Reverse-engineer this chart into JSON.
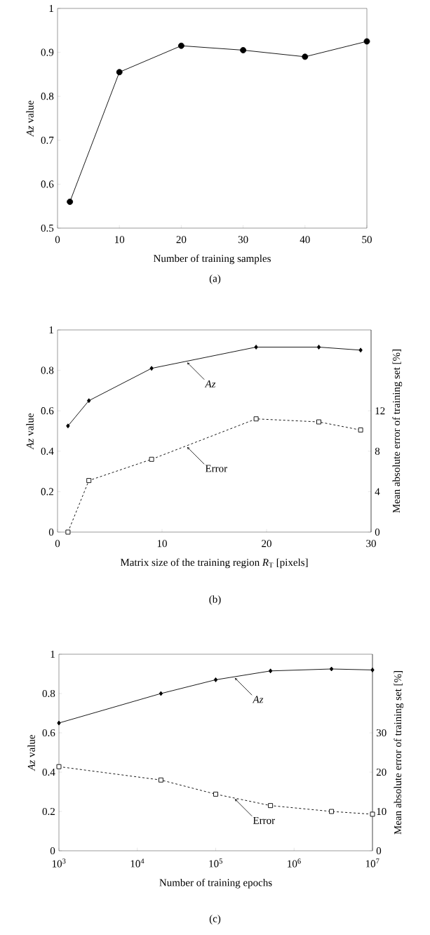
{
  "chart_data": [
    {
      "type": "line",
      "xlabel": "Number of training samples",
      "ylabel": "*Az* value",
      "x": [
        2,
        10,
        20,
        30,
        40,
        50
      ],
      "series": [
        {
          "color": "#000000",
          "marker": "circle",
          "values": [
            0.56,
            0.855,
            0.915,
            0.905,
            0.89,
            0.925
          ]
        }
      ],
      "xlim": [
        0,
        50
      ],
      "xticks": [
        0,
        10,
        20,
        30,
        40,
        50
      ],
      "ylim": [
        0.5,
        1
      ],
      "yticks": [
        0.5,
        0.6,
        0.7,
        0.8,
        0.9,
        1
      ],
      "annotations": [
        "(a)"
      ]
    },
    {
      "type": "line",
      "xlabel": "Matrix size of the training region *R*$_{T}$ [pixels]",
      "ylabel": "*Az* value",
      "y2label": "Mean absolute error of training set [%]",
      "x": [
        1,
        3,
        9,
        19,
        25,
        29
      ],
      "series": [
        {
          "color": "#000000",
          "marker": "diamond",
          "line_style": "solid",
          "values": [
            0.525,
            0.65,
            0.81,
            0.915,
            0.915,
            0.9
          ]
        },
        {
          "color": "#000000",
          "marker": "square",
          "line_style": "dashed",
          "axis": "y2",
          "values": [
            0,
            5.1,
            7.2,
            11.2,
            10.9,
            10.1
          ]
        }
      ],
      "xlim": [
        0,
        30
      ],
      "xticks": [
        0,
        10,
        20,
        30
      ],
      "ylim": [
        0,
        1
      ],
      "yticks": [
        0,
        0.2,
        0.4,
        0.6,
        0.8,
        1
      ],
      "y2lim": [
        0,
        20
      ],
      "y2ticks": [
        0,
        4,
        8,
        12
      ],
      "annotations": [
        "(b)",
        "Az",
        "Error"
      ]
    },
    {
      "type": "line",
      "xlabel": "Number of training epochs",
      "ylabel": "*Az* value",
      "y2label": "Mean absolute error of training set [%]",
      "log": "x",
      "x": [
        1000,
        20000,
        100000,
        500000,
        3000000,
        10000000
      ],
      "series": [
        {
          "color": "#000000",
          "marker": "diamond",
          "line_style": "solid",
          "values": [
            0.65,
            0.8,
            0.87,
            0.915,
            0.925,
            0.92
          ]
        },
        {
          "color": "#000000",
          "marker": "square",
          "line_style": "dashed",
          "axis": "y2",
          "values": [
            21.4,
            18.0,
            14.4,
            11.5,
            10.0,
            9.3
          ]
        }
      ],
      "xlim": [
        1000,
        10000000
      ],
      "xticks": [
        {
          "value": 1000,
          "label": "10$^{3}$"
        },
        {
          "value": 10000,
          "label": "10$^{4}$"
        },
        {
          "value": 100000,
          "label": "10$^{5}$"
        },
        {
          "value": 1000000,
          "label": "10$^{6}$"
        },
        {
          "value": 10000000,
          "label": "10$^{7}$"
        }
      ],
      "ylim": [
        0,
        1
      ],
      "yticks": [
        0,
        0.2,
        0.4,
        0.6,
        0.8,
        1
      ],
      "y2lim": [
        0,
        50
      ],
      "y2ticks": [
        0,
        10,
        20,
        30
      ],
      "annotations": [
        "(c)",
        "Az",
        "Error"
      ]
    }
  ]
}
